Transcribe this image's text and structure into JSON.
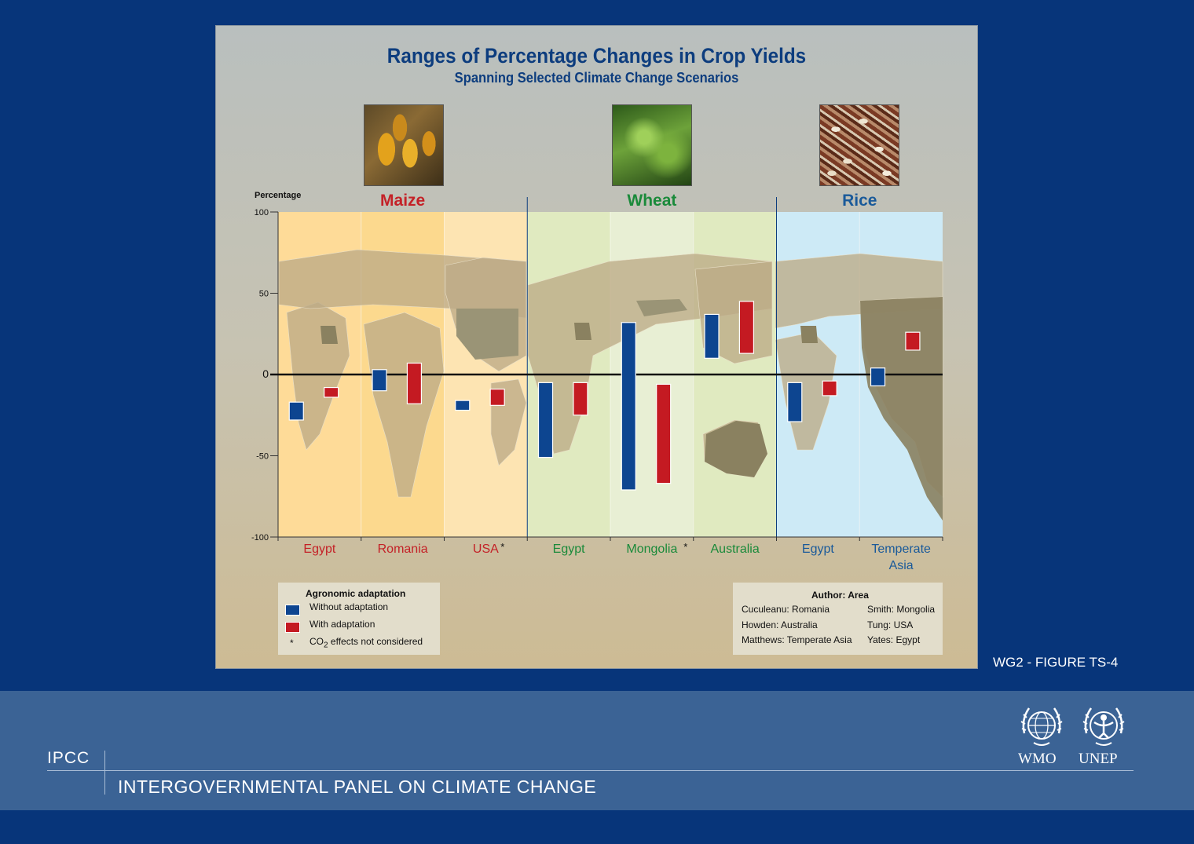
{
  "chart_data": {
    "type": "bar",
    "title": "Ranges of Percentage Changes in Crop Yields",
    "subtitle": "Spanning Selected Climate Change Scenarios",
    "ylabel": "Percentage",
    "ylim": [
      -100,
      100
    ],
    "yticks": [
      "100",
      "50",
      "0",
      "-50",
      "-100"
    ],
    "grid": false,
    "crops": [
      {
        "name": "Maize",
        "color": "#c42127"
      },
      {
        "name": "Wheat",
        "color": "#1a8a3a"
      },
      {
        "name": "Rice",
        "color": "#1a5a9a"
      }
    ],
    "categories": [
      {
        "crop": "Maize",
        "label": "Egypt",
        "co2_mark": ""
      },
      {
        "crop": "Maize",
        "label": "Romania",
        "co2_mark": ""
      },
      {
        "crop": "Maize",
        "label": "USA",
        "co2_mark": "*"
      },
      {
        "crop": "Wheat",
        "label": "Egypt",
        "co2_mark": ""
      },
      {
        "crop": "Wheat",
        "label": "Mongolia",
        "co2_mark": "*"
      },
      {
        "crop": "Wheat",
        "label": "Australia",
        "co2_mark": ""
      },
      {
        "crop": "Rice",
        "label": "Egypt",
        "co2_mark": ""
      },
      {
        "crop": "Rice",
        "label": "Temperate Asia",
        "co2_mark": ""
      }
    ],
    "series": [
      {
        "name": "Without adaptation",
        "color": "#0d4590",
        "ranges": [
          [
            -28,
            -17
          ],
          [
            -10,
            3
          ],
          [
            -22,
            -16
          ],
          [
            -51,
            -5
          ],
          [
            -71,
            32
          ],
          [
            10,
            37
          ],
          [
            -29,
            -5
          ],
          [
            -7,
            4
          ]
        ]
      },
      {
        "name": "With adaptation",
        "color": "#c41a22",
        "ranges": [
          [
            -14,
            -8
          ],
          [
            -18,
            7
          ],
          [
            -19,
            -9
          ],
          [
            -25,
            -5
          ],
          [
            -67,
            -6
          ],
          [
            13,
            45
          ],
          [
            -13,
            -4
          ],
          [
            15,
            26
          ]
        ]
      }
    ]
  },
  "legend": {
    "title": "Agronomic adaptation",
    "without_label": "Without adaptation",
    "with_label": "With adaptation",
    "co2_star": "*",
    "co2_text": "CO",
    "co2_sub": "2",
    "co2_rest": " effects not considered"
  },
  "authors": {
    "title": "Author: Area",
    "entries": [
      "Cuculeanu: Romania",
      "Smith: Mongolia",
      "Howden: Australia",
      "Tung: USA",
      "Matthews: Temperate Asia",
      "Yates: Egypt"
    ]
  },
  "figure_label": "WG2 - FIGURE TS-4",
  "footer": {
    "acronym": "IPCC",
    "full_name": "INTERGOVERNMENTAL PANEL ON CLIMATE CHANGE",
    "org1": "WMO",
    "org2": "UNEP"
  },
  "colors": {
    "background": "#07357a",
    "footer": "#3b6395",
    "maize_bg": "#fedb98",
    "wheat_bg": "#e0eac0",
    "rice_bg": "#cdeaf6",
    "land": "#bdaa86"
  }
}
